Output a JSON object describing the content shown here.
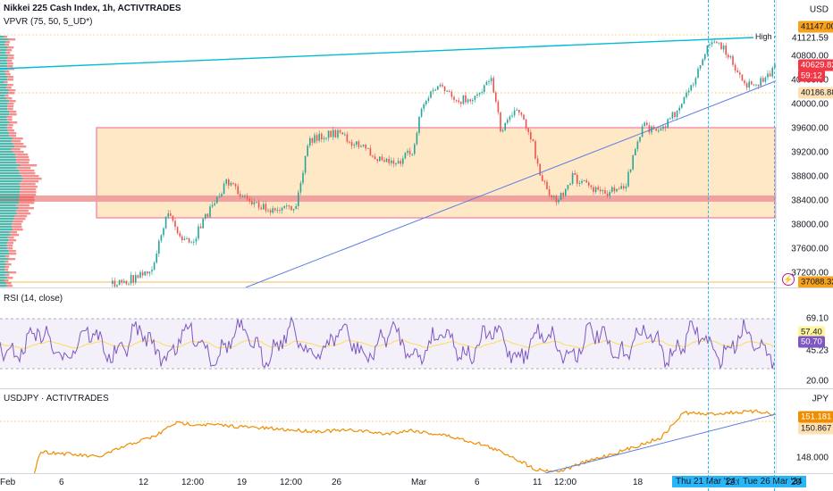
{
  "main": {
    "title": "Nikkei 225 Cash Index, 1h, ACTIVTRADES",
    "indicator": "VPVR (75, 50, 5_UD*)",
    "currency": "USD",
    "high_label": "High",
    "price_ticks": [
      "41121.59",
      "40800.00",
      "40400.00",
      "40000.00",
      "39600.00",
      "39200.00",
      "38800.00",
      "38400.00",
      "38000.00",
      "37600.00",
      "37200.00"
    ],
    "tag_high": "41147.00",
    "tag_last": "40629.82",
    "tag_countdown": "59:12",
    "tag_level": "40186.88",
    "tag_low": "37088.32"
  },
  "rsi": {
    "title": "RSI (14, close)",
    "ticks": [
      "69.10",
      "45.23",
      "20.00"
    ],
    "tag_ma": "57.40",
    "tag_rsi": "50.70"
  },
  "usdjpy": {
    "title": "USDJPY · ACTIVTRADES",
    "currency": "JPY",
    "ticks": [
      "148.000"
    ],
    "tag_last": "151.181",
    "tag_level": "150.867"
  },
  "time_axis": {
    "labels": [
      "Feb",
      "6",
      "12",
      "12:00",
      "19",
      "12:00",
      "26",
      "Mar",
      "6",
      "11",
      "12:00",
      "18"
    ],
    "highlight_1": "Thu 21 Mar '24",
    "mid_label": "12:00",
    "highlight_2": "Tue 26 Mar '24",
    "end_label": "20"
  },
  "colors": {
    "up": "#26a69a",
    "down": "#ef5350",
    "range_box": "#ffe0b2",
    "rsi_line": "#7e57c2",
    "usdjpy_line": "#ef8e00",
    "trend_cyan": "#00bcd4",
    "trend_blue": "#5b7ee5"
  }
}
